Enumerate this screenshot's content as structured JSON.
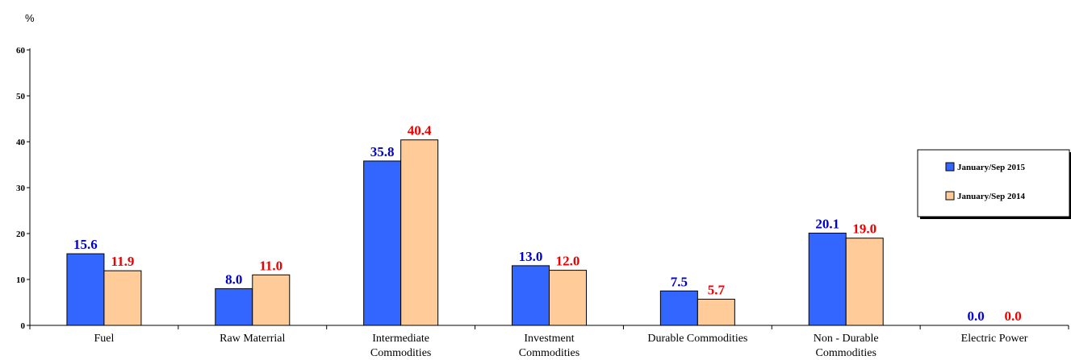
{
  "chart_data": {
    "type": "bar",
    "ylabel": "%",
    "ylim": [
      0,
      60
    ],
    "yticks": [
      0,
      10,
      20,
      30,
      40,
      50,
      60
    ],
    "grid": false,
    "legend_position": "right",
    "categories": [
      [
        "Fuel"
      ],
      [
        "Raw Materrial"
      ],
      [
        "Intermediate",
        "Commodities"
      ],
      [
        "Investment",
        "Commodities"
      ],
      [
        "Durable Commodities"
      ],
      [
        "Non - Durable",
        "Commodities"
      ],
      [
        "Electric Power"
      ]
    ],
    "series": [
      {
        "name": "January/Sep 2015",
        "color": "#3366ff",
        "label_color": "#0000cc",
        "values": [
          15.6,
          8.0,
          35.8,
          13.0,
          7.5,
          20.1,
          0.0
        ]
      },
      {
        "name": "January/Sep 2014",
        "color": "#ffcc99",
        "label_color": "#ee0000",
        "values": [
          11.9,
          11.0,
          40.4,
          12.0,
          5.7,
          19.0,
          0.0
        ]
      }
    ]
  }
}
